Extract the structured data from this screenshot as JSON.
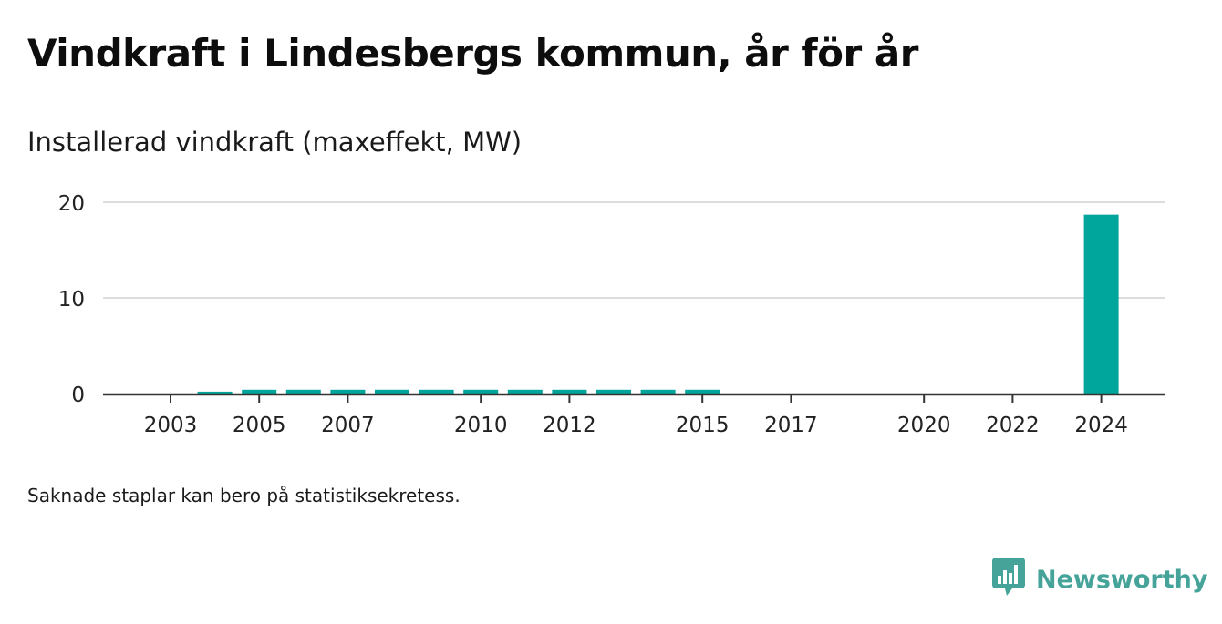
{
  "title": "Vindkraft i Lindesbergs kommun, år för år",
  "subtitle": "Installerad vindkraft (maxeffekt, MW)",
  "footnote": "Saknade staplar kan bero på statistiksekretess.",
  "brand": {
    "name": "Newsworthy",
    "icon": "newsworthy-logo-icon",
    "color": "#46a39a"
  },
  "colors": {
    "bar": "#00a59b",
    "grid": "#dddddd",
    "axis": "#333333",
    "text": "#222222"
  },
  "chart_data": {
    "type": "bar",
    "categories": [
      "2003",
      "2004",
      "2005",
      "2006",
      "2007",
      "2008",
      "2009",
      "2010",
      "2011",
      "2012",
      "2013",
      "2014",
      "2015",
      "2016",
      "2017",
      "2018",
      "2019",
      "2020",
      "2021",
      "2022",
      "2023",
      "2024"
    ],
    "values": [
      0,
      0.2,
      0.4,
      0.4,
      0.4,
      0.4,
      0.4,
      0.4,
      0.4,
      0.4,
      0.4,
      0.4,
      0.4,
      0,
      0,
      0,
      0,
      0,
      0,
      0,
      0,
      18.7
    ],
    "x_tick_labels": [
      "2003",
      "2005",
      "2007",
      "2010",
      "2012",
      "2015",
      "2017",
      "2020",
      "2022",
      "2024"
    ],
    "y_ticks": [
      0,
      10,
      20
    ],
    "ylim": [
      0,
      21
    ],
    "title": "Vindkraft i Lindesbergs kommun, år för år",
    "ylabel": "Installerad vindkraft (maxeffekt, MW)",
    "xlabel": "",
    "grid": true
  }
}
